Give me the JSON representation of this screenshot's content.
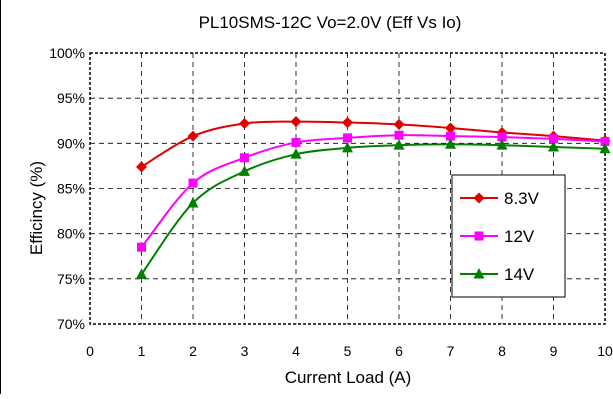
{
  "chart_data": {
    "type": "line",
    "title": "PL10SMS-12C Vo=2.0V (Eff Vs Io)",
    "xlabel": "Current Load (A)",
    "ylabel": "Efficincy (%)",
    "xlim": [
      0,
      10
    ],
    "ylim": [
      70,
      100
    ],
    "x_ticks": [
      "0",
      "1",
      "2",
      "3",
      "4",
      "5",
      "6",
      "7",
      "8",
      "9",
      "10"
    ],
    "y_ticks": [
      "70%",
      "75%",
      "80%",
      "85%",
      "90%",
      "95%",
      "100%"
    ],
    "grid": true,
    "legend_position": "right-middle",
    "x": [
      1,
      2,
      3,
      4,
      5,
      6,
      7,
      8,
      9,
      10
    ],
    "series": [
      {
        "name": "8.3V",
        "color": "#e00000",
        "marker": "diamond",
        "values": [
          87.4,
          90.8,
          92.2,
          92.4,
          92.3,
          92.1,
          91.7,
          91.2,
          90.8,
          90.3
        ]
      },
      {
        "name": "12V",
        "color": "#ff00ff",
        "marker": "square",
        "values": [
          78.5,
          85.6,
          88.4,
          90.1,
          90.6,
          90.9,
          90.8,
          90.7,
          90.5,
          90.2
        ]
      },
      {
        "name": "14V",
        "color": "#008000",
        "marker": "triangle",
        "values": [
          75.5,
          83.4,
          86.9,
          88.8,
          89.5,
          89.8,
          89.9,
          89.8,
          89.6,
          89.4
        ]
      }
    ]
  }
}
